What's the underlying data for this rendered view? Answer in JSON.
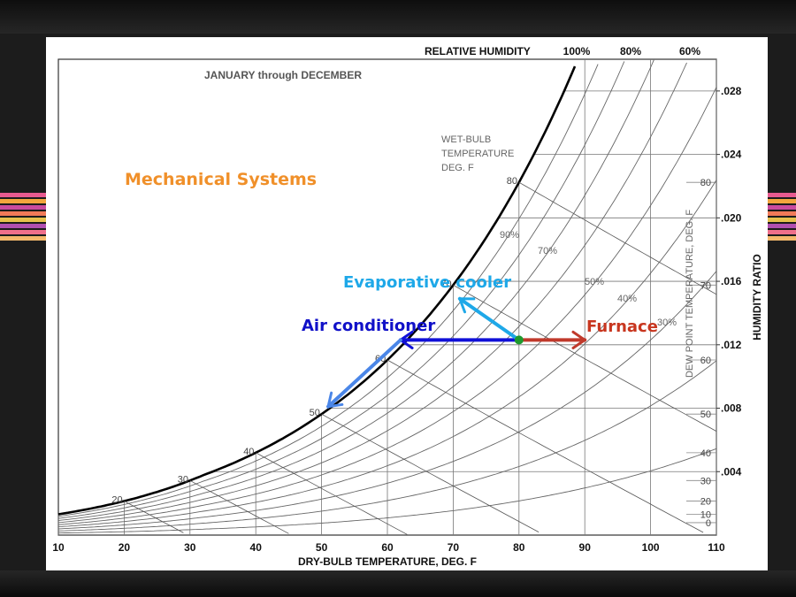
{
  "chart_data": {
    "type": "psychrometric",
    "title": "JANUARY through DECEMBER",
    "xlabel": "DRY-BULB TEMPERATURE, DEG. F",
    "ylabel": "HUMIDITY RATIO",
    "top_label": "RELATIVE HUMIDITY",
    "dew_point_label": "DEW POINT TEMPERATURE, DEG. F",
    "wet_bulb_label": [
      "WET-BULB",
      "TEMPERATURE",
      "DEG. F"
    ],
    "xlim": [
      10,
      110
    ],
    "ylim": [
      0,
      0.03
    ],
    "x_ticks": [
      "10",
      "20",
      "30",
      "40",
      "50",
      "60",
      "70",
      "80",
      "90",
      "100",
      "110"
    ],
    "y_ticks": [
      ".004",
      ".008",
      ".012",
      ".016",
      ".020",
      ".024",
      ".028"
    ],
    "dew_point_ticks": [
      "0",
      "10",
      "20",
      "30",
      "40",
      "50",
      "60",
      "70",
      "80"
    ],
    "rh_top_labels": [
      "100%",
      "80%",
      "60%"
    ],
    "rh_inner_labels": [
      "90%",
      "70%",
      "50%",
      "40%",
      "30%"
    ],
    "wet_bulb_labels": [
      "20",
      "30",
      "40",
      "50",
      "60",
      "70",
      "80"
    ],
    "rh_curves": [
      1.0,
      0.9,
      0.8,
      0.7,
      0.6,
      0.5,
      0.4,
      0.3,
      0.2,
      0.1
    ],
    "wet_bulb_lines": [
      20,
      30,
      40,
      50,
      60,
      70,
      80
    ],
    "state_point": {
      "dry_bulb": 80,
      "humidity_ratio": 0.0123
    },
    "processes": [
      {
        "label": "Furnace",
        "color": "#c0392b",
        "from": [
          80,
          0.0123
        ],
        "to": [
          90,
          0.0123
        ]
      },
      {
        "label": "Air conditioner",
        "color": "#1010d8",
        "from": [
          80,
          0.0123
        ],
        "to": [
          62,
          0.0123
        ]
      },
      {
        "label": "Evaporative cooler",
        "color": "#1ea8e8",
        "from": [
          80,
          0.0123
        ],
        "to": [
          71,
          0.0149
        ]
      },
      {
        "label": "",
        "color": "#4a86e8",
        "from": [
          62,
          0.0123
        ],
        "to": [
          51,
          0.0081
        ]
      }
    ]
  },
  "annotations": {
    "heading": "Mechanical Systems",
    "heading_color": "#f0902a",
    "evaporative": "Evaporative cooler",
    "evaporative_color": "#1ea8e8",
    "air_conditioner": "Air conditioner",
    "air_conditioner_color": "#1010c8",
    "furnace": "Furnace",
    "furnace_color": "#c8361f"
  },
  "stripe_colors": [
    "#e85a90",
    "#f3a53d",
    "#c94a9e",
    "#f07a58",
    "#e6c14d",
    "#b04fb0",
    "#ef6f8a",
    "#f4b86b"
  ]
}
